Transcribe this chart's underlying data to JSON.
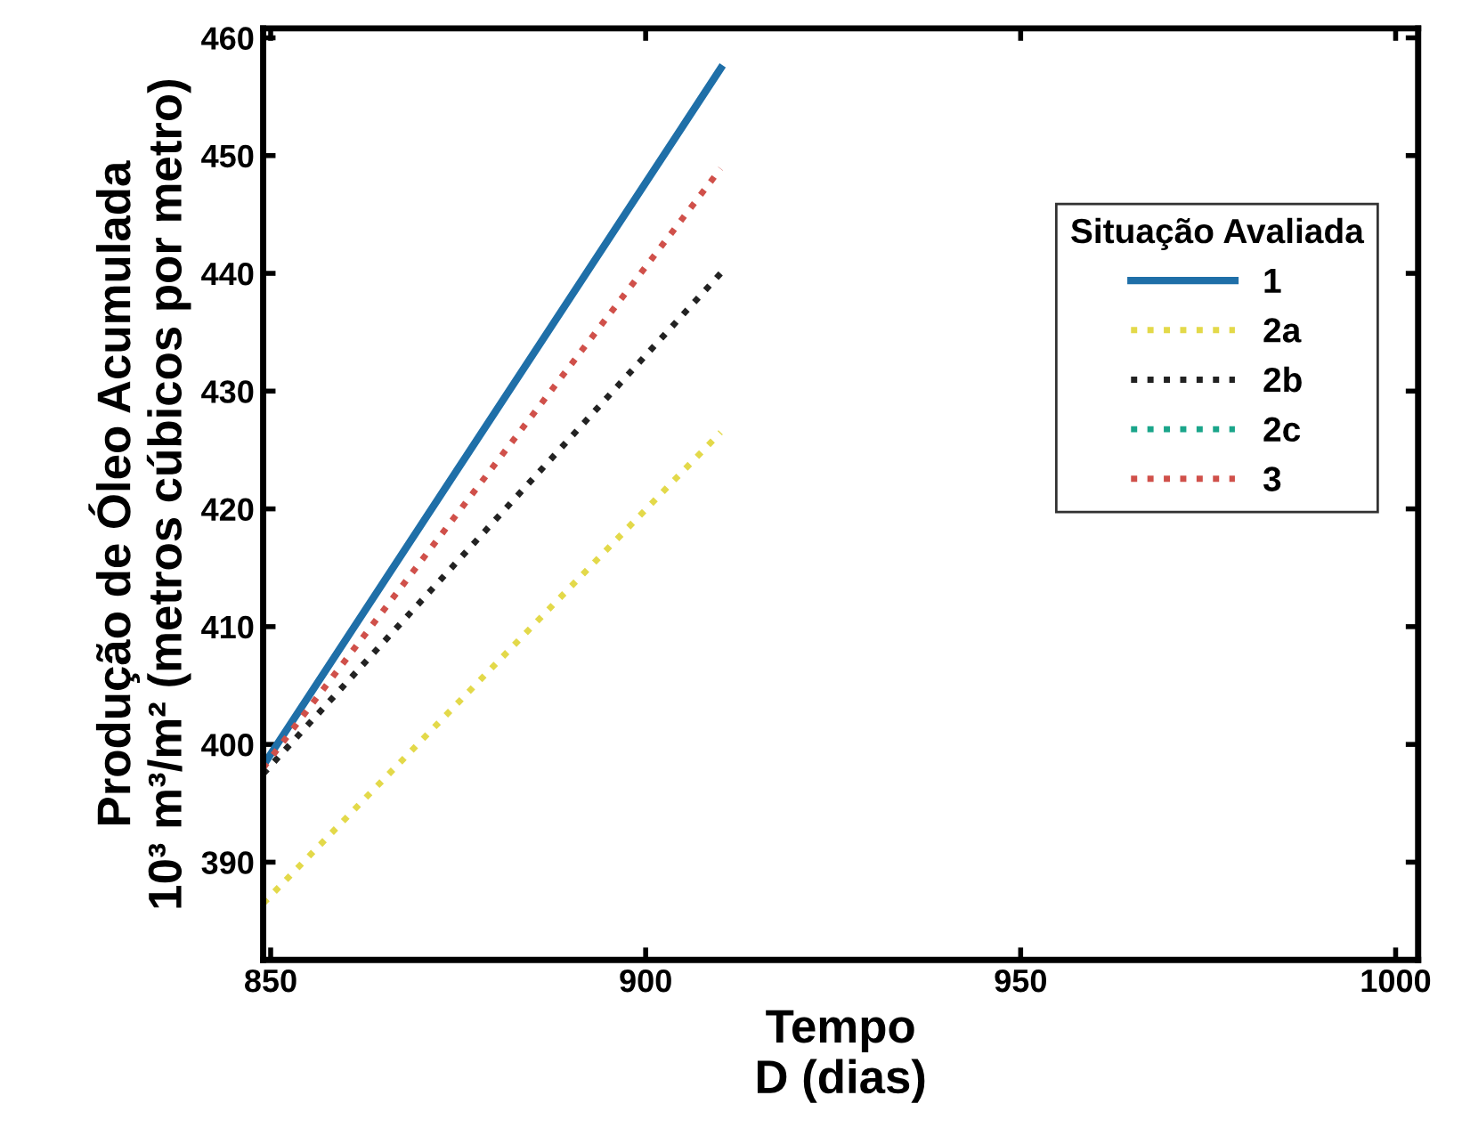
{
  "chart_data": {
    "type": "line",
    "xlabel": "Tempo\nD (dias)",
    "ylabel": "Produção de Óleo Acumulada\n10³ m³/m² (metros cúbicos por metro)",
    "legend_title": "Situação Avaliada",
    "legend": "top right",
    "grid": false,
    "xlim": [
      849,
      1003
    ],
    "ylim": [
      381.7,
      460.8
    ],
    "xticks": [
      850,
      900,
      950,
      1000
    ],
    "yticks": [
      390,
      400,
      410,
      420,
      430,
      440,
      450,
      460
    ],
    "x": [
      849,
      910
    ],
    "series": [
      {
        "name": "1",
        "color": "#1f6fa8",
        "values": [
          398.2,
          457.4
        ],
        "line_style": "solid"
      },
      {
        "name": "2a",
        "color": "#e3d94a",
        "values": [
          386.5,
          426.5
        ],
        "line_style": "dotted"
      },
      {
        "name": "2b",
        "color": "#222222",
        "values": [
          397.5,
          440
        ],
        "line_style": "dotted"
      },
      {
        "name": "2c",
        "color": "#1aa58a",
        "values": [
          null,
          null
        ],
        "line_style": "dotted"
      },
      {
        "name": "3",
        "color": "#d0504a",
        "values": [
          398,
          448.9
        ],
        "line_style": "dotted"
      }
    ]
  }
}
